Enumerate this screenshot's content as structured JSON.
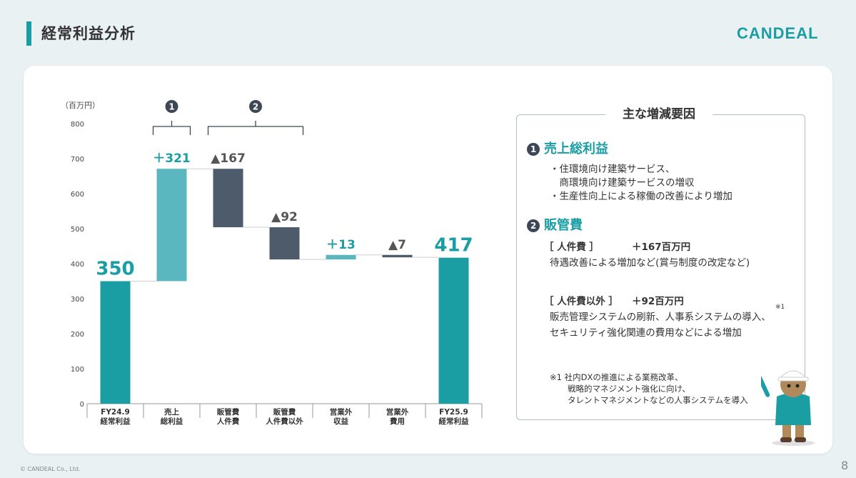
{
  "page": {
    "title": "経常利益分析",
    "logo": "CANDEAL",
    "copyright": "© CANDEAL Co., Ltd.",
    "page_number": "8"
  },
  "chart_data": {
    "type": "bar",
    "unit_label": "（百万円）",
    "ylim": [
      0,
      800
    ],
    "yticks": [
      0,
      100,
      200,
      300,
      400,
      500,
      600,
      700,
      800
    ],
    "categories": [
      [
        "FY24.9",
        "経常利益"
      ],
      [
        "売上",
        "総利益"
      ],
      [
        "販管費",
        "人件費"
      ],
      [
        "販管費",
        "人件費以外"
      ],
      [
        "営業外",
        "収益"
      ],
      [
        "営業外",
        "費用"
      ],
      [
        "FY25.9",
        "経常利益"
      ]
    ],
    "bars": [
      {
        "label": "350",
        "base": 0,
        "value": 350,
        "kind": "total"
      },
      {
        "label": "＋321",
        "base": 350,
        "value": 671,
        "kind": "increase"
      },
      {
        "label": "▲167",
        "base": 504,
        "value": 671,
        "kind": "decrease"
      },
      {
        "label": "▲92",
        "base": 412,
        "value": 504,
        "kind": "decrease"
      },
      {
        "label": "＋13",
        "base": 412,
        "value": 425,
        "kind": "increase"
      },
      {
        "label": "▲7",
        "base": 418,
        "value": 425,
        "kind": "decrease"
      },
      {
        "label": "417",
        "base": 0,
        "value": 417,
        "kind": "total"
      }
    ],
    "groups": [
      {
        "num": "1",
        "from": 1,
        "to": 1
      },
      {
        "num": "2",
        "from": 2,
        "to": 3
      }
    ],
    "colors": {
      "total": "#1a9ea4",
      "increase": "#5bb7bf",
      "decrease": "#4e5b6b",
      "decrease_label": "#555555"
    }
  },
  "factors": {
    "title": "主な増減要因",
    "items": [
      {
        "num": "1",
        "heading": "売上総利益",
        "lines": [
          "・住環境向け建築サービス、",
          "　商環境向け建築サービスの増収",
          "・生産性向上による稼働の改善により増加"
        ]
      },
      {
        "num": "2",
        "heading": "販管費",
        "subs": [
          {
            "label": "［ 人件費 ］",
            "amount": "＋167百万円",
            "lines": [
              "待遇改善による増加など(賞与制度の改定など)"
            ]
          },
          {
            "label": "［ 人件費以外 ］",
            "amount": "＋92百万円",
            "lines": [
              "販売管理システムの刷新、人事系システムの導入、",
              "セキュリティ強化関連の費用などによる増加"
            ],
            "note_mark": "※1"
          }
        ]
      }
    ],
    "footnote": [
      "※1 社内DXの推進による業務改革、",
      "戦略的マネジメント強化に向け、",
      "タレントマネジメントなどの人事システムを導入"
    ]
  }
}
